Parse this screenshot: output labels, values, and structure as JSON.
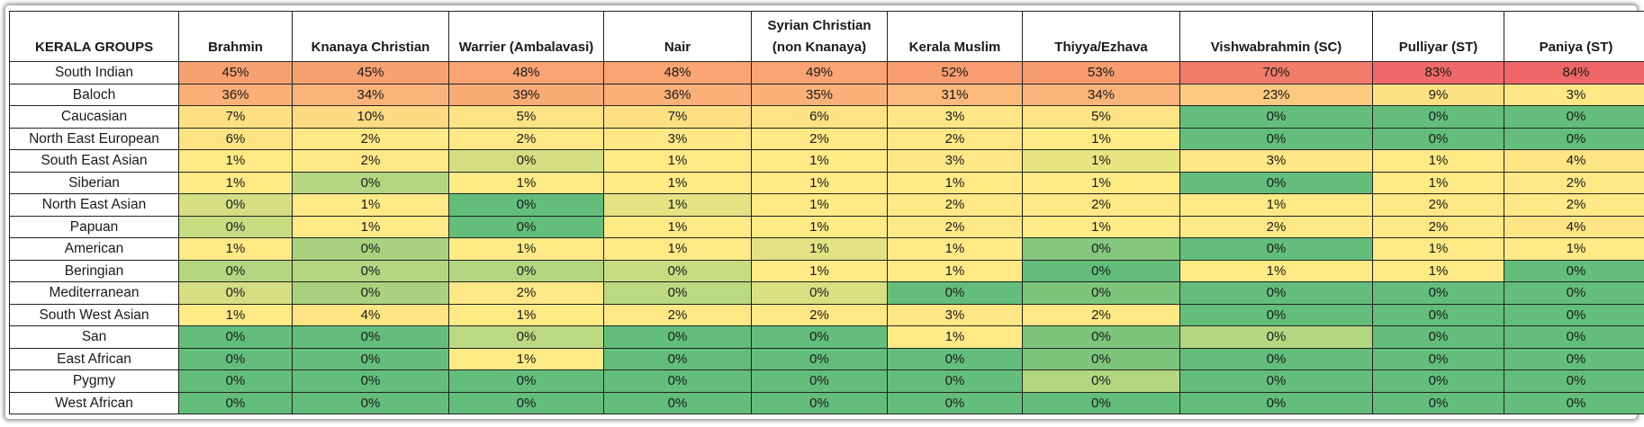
{
  "table": {
    "corner_label": "KERALA GROUPS",
    "columns": [
      "Brahmin",
      "Knanaya Christian",
      "Warrier (Ambalavasi)",
      "Nair",
      "Syrian Christian (non Knanaya)",
      "Kerala Muslim",
      "Thiyya/Ezhava",
      "Vishwabrahmin (SC)",
      "Pulliyar (ST)",
      "Paniya (ST)"
    ],
    "rows": [
      {
        "label": "South Indian",
        "cells": [
          {
            "v": "45%",
            "bg": "#F8A170"
          },
          {
            "v": "45%",
            "bg": "#F8A170"
          },
          {
            "v": "48%",
            "bg": "#F9A472"
          },
          {
            "v": "48%",
            "bg": "#F9A472"
          },
          {
            "v": "49%",
            "bg": "#F9A472"
          },
          {
            "v": "52%",
            "bg": "#F79D6F"
          },
          {
            "v": "53%",
            "bg": "#F79C6E"
          },
          {
            "v": "70%",
            "bg": "#F27C6B"
          },
          {
            "v": "83%",
            "bg": "#F0696A"
          },
          {
            "v": "84%",
            "bg": "#EF6669"
          }
        ]
      },
      {
        "label": "Baloch",
        "cells": [
          {
            "v": "36%",
            "bg": "#FAB077"
          },
          {
            "v": "34%",
            "bg": "#FAB47A"
          },
          {
            "v": "39%",
            "bg": "#F9AB74"
          },
          {
            "v": "36%",
            "bg": "#FAB077"
          },
          {
            "v": "35%",
            "bg": "#FAB279"
          },
          {
            "v": "31%",
            "bg": "#FBB97C"
          },
          {
            "v": "34%",
            "bg": "#FAB47A"
          },
          {
            "v": "23%",
            "bg": "#FCC981"
          },
          {
            "v": "9%",
            "bg": "#FEE183"
          },
          {
            "v": "3%",
            "bg": "#FFE785"
          }
        ]
      },
      {
        "label": "Caucasian",
        "cells": [
          {
            "v": "7%",
            "bg": "#FEE083"
          },
          {
            "v": "10%",
            "bg": "#FDDB82"
          },
          {
            "v": "5%",
            "bg": "#FEE384"
          },
          {
            "v": "7%",
            "bg": "#FEE083"
          },
          {
            "v": "6%",
            "bg": "#FEE284"
          },
          {
            "v": "3%",
            "bg": "#FFE785"
          },
          {
            "v": "5%",
            "bg": "#FEE384"
          },
          {
            "v": "0%",
            "bg": "#63BE7B"
          },
          {
            "v": "0%",
            "bg": "#63BE7B"
          },
          {
            "v": "0%",
            "bg": "#63BE7B"
          }
        ]
      },
      {
        "label": "North East European",
        "cells": [
          {
            "v": "6%",
            "bg": "#FEE284"
          },
          {
            "v": "2%",
            "bg": "#FFE885"
          },
          {
            "v": "2%",
            "bg": "#FFE885"
          },
          {
            "v": "3%",
            "bg": "#FFE785"
          },
          {
            "v": "2%",
            "bg": "#FFE885"
          },
          {
            "v": "2%",
            "bg": "#FFE885"
          },
          {
            "v": "1%",
            "bg": "#FFEA86"
          },
          {
            "v": "0%",
            "bg": "#63BE7B"
          },
          {
            "v": "0%",
            "bg": "#63BE7B"
          },
          {
            "v": "0%",
            "bg": "#63BE7B"
          }
        ]
      },
      {
        "label": "South East Asian",
        "cells": [
          {
            "v": "1%",
            "bg": "#FFEA86"
          },
          {
            "v": "2%",
            "bg": "#FFE885"
          },
          {
            "v": "0%",
            "bg": "#D3DF82"
          },
          {
            "v": "1%",
            "bg": "#FFEA86"
          },
          {
            "v": "1%",
            "bg": "#FFEA86"
          },
          {
            "v": "3%",
            "bg": "#FFE785"
          },
          {
            "v": "1%",
            "bg": "#E9E583"
          },
          {
            "v": "3%",
            "bg": "#FFE785"
          },
          {
            "v": "1%",
            "bg": "#FFEA86"
          },
          {
            "v": "4%",
            "bg": "#FEE584"
          }
        ]
      },
      {
        "label": "Siberian",
        "cells": [
          {
            "v": "1%",
            "bg": "#FFEA86"
          },
          {
            "v": "0%",
            "bg": "#B4D680"
          },
          {
            "v": "1%",
            "bg": "#FFEA86"
          },
          {
            "v": "1%",
            "bg": "#FFEA86"
          },
          {
            "v": "1%",
            "bg": "#FFEA86"
          },
          {
            "v": "1%",
            "bg": "#FFEA86"
          },
          {
            "v": "1%",
            "bg": "#FFEA86"
          },
          {
            "v": "0%",
            "bg": "#63BE7B"
          },
          {
            "v": "1%",
            "bg": "#FFEA86"
          },
          {
            "v": "2%",
            "bg": "#FFE885"
          }
        ]
      },
      {
        "label": "North East Asian",
        "cells": [
          {
            "v": "0%",
            "bg": "#D3DF82"
          },
          {
            "v": "1%",
            "bg": "#FFEA86"
          },
          {
            "v": "0%",
            "bg": "#63BE7B"
          },
          {
            "v": "1%",
            "bg": "#E4E383"
          },
          {
            "v": "1%",
            "bg": "#FFEA86"
          },
          {
            "v": "2%",
            "bg": "#FFE885"
          },
          {
            "v": "2%",
            "bg": "#FFE885"
          },
          {
            "v": "1%",
            "bg": "#FFEA86"
          },
          {
            "v": "2%",
            "bg": "#FFE885"
          },
          {
            "v": "2%",
            "bg": "#FFE885"
          }
        ]
      },
      {
        "label": "Papuan",
        "cells": [
          {
            "v": "0%",
            "bg": "#C7DB81"
          },
          {
            "v": "1%",
            "bg": "#FFEA86"
          },
          {
            "v": "0%",
            "bg": "#63BE7B"
          },
          {
            "v": "1%",
            "bg": "#FFEA86"
          },
          {
            "v": "1%",
            "bg": "#FFEA86"
          },
          {
            "v": "2%",
            "bg": "#FFE885"
          },
          {
            "v": "1%",
            "bg": "#FFEA86"
          },
          {
            "v": "2%",
            "bg": "#FFE885"
          },
          {
            "v": "2%",
            "bg": "#FFE885"
          },
          {
            "v": "4%",
            "bg": "#FEE584"
          }
        ]
      },
      {
        "label": "American",
        "cells": [
          {
            "v": "1%",
            "bg": "#FFEA86"
          },
          {
            "v": "0%",
            "bg": "#A9D27F"
          },
          {
            "v": "1%",
            "bg": "#FFEA86"
          },
          {
            "v": "1%",
            "bg": "#FFEA86"
          },
          {
            "v": "1%",
            "bg": "#E1E283"
          },
          {
            "v": "1%",
            "bg": "#FFEA86"
          },
          {
            "v": "0%",
            "bg": "#84C77D"
          },
          {
            "v": "0%",
            "bg": "#63BE7B"
          },
          {
            "v": "1%",
            "bg": "#FFEA86"
          },
          {
            "v": "1%",
            "bg": "#FFEA86"
          }
        ]
      },
      {
        "label": "Beringian",
        "cells": [
          {
            "v": "0%",
            "bg": "#B4D680"
          },
          {
            "v": "0%",
            "bg": "#B4D680"
          },
          {
            "v": "0%",
            "bg": "#B4D680"
          },
          {
            "v": "0%",
            "bg": "#C7DB81"
          },
          {
            "v": "1%",
            "bg": "#FFEA86"
          },
          {
            "v": "1%",
            "bg": "#FFEA86"
          },
          {
            "v": "0%",
            "bg": "#63BE7B"
          },
          {
            "v": "1%",
            "bg": "#FFEA86"
          },
          {
            "v": "1%",
            "bg": "#FFEA86"
          },
          {
            "v": "0%",
            "bg": "#63BE7B"
          }
        ]
      },
      {
        "label": "Mediterranean",
        "cells": [
          {
            "v": "0%",
            "bg": "#D3DF82"
          },
          {
            "v": "0%",
            "bg": "#A9D27F"
          },
          {
            "v": "2%",
            "bg": "#FFE885"
          },
          {
            "v": "0%",
            "bg": "#BCD881"
          },
          {
            "v": "0%",
            "bg": "#D9E082"
          },
          {
            "v": "0%",
            "bg": "#63BE7B"
          },
          {
            "v": "0%",
            "bg": "#7EC57C"
          },
          {
            "v": "0%",
            "bg": "#63BE7B"
          },
          {
            "v": "0%",
            "bg": "#63BE7B"
          },
          {
            "v": "0%",
            "bg": "#63BE7B"
          }
        ]
      },
      {
        "label": "South West Asian",
        "cells": [
          {
            "v": "1%",
            "bg": "#FFEA86"
          },
          {
            "v": "4%",
            "bg": "#FEE584"
          },
          {
            "v": "1%",
            "bg": "#FFEA86"
          },
          {
            "v": "2%",
            "bg": "#FFE885"
          },
          {
            "v": "2%",
            "bg": "#FFE885"
          },
          {
            "v": "3%",
            "bg": "#FFE785"
          },
          {
            "v": "2%",
            "bg": "#FFE885"
          },
          {
            "v": "0%",
            "bg": "#63BE7B"
          },
          {
            "v": "0%",
            "bg": "#63BE7B"
          },
          {
            "v": "0%",
            "bg": "#63BE7B"
          }
        ]
      },
      {
        "label": "San",
        "cells": [
          {
            "v": "0%",
            "bg": "#63BE7B"
          },
          {
            "v": "0%",
            "bg": "#63BE7B"
          },
          {
            "v": "0%",
            "bg": "#BCD881"
          },
          {
            "v": "0%",
            "bg": "#63BE7B"
          },
          {
            "v": "0%",
            "bg": "#63BE7B"
          },
          {
            "v": "1%",
            "bg": "#FFEA86"
          },
          {
            "v": "0%",
            "bg": "#7EC57C"
          },
          {
            "v": "0%",
            "bg": "#B4D680"
          },
          {
            "v": "0%",
            "bg": "#63BE7B"
          },
          {
            "v": "0%",
            "bg": "#63BE7B"
          }
        ]
      },
      {
        "label": "East African",
        "cells": [
          {
            "v": "0%",
            "bg": "#63BE7B"
          },
          {
            "v": "0%",
            "bg": "#63BE7B"
          },
          {
            "v": "1%",
            "bg": "#FFEA86"
          },
          {
            "v": "0%",
            "bg": "#63BE7B"
          },
          {
            "v": "0%",
            "bg": "#63BE7B"
          },
          {
            "v": "0%",
            "bg": "#63BE7B"
          },
          {
            "v": "0%",
            "bg": "#7EC57C"
          },
          {
            "v": "0%",
            "bg": "#63BE7B"
          },
          {
            "v": "0%",
            "bg": "#63BE7B"
          },
          {
            "v": "0%",
            "bg": "#63BE7B"
          }
        ]
      },
      {
        "label": "Pygmy",
        "cells": [
          {
            "v": "0%",
            "bg": "#63BE7B"
          },
          {
            "v": "0%",
            "bg": "#63BE7B"
          },
          {
            "v": "0%",
            "bg": "#63BE7B"
          },
          {
            "v": "0%",
            "bg": "#63BE7B"
          },
          {
            "v": "0%",
            "bg": "#63BE7B"
          },
          {
            "v": "0%",
            "bg": "#63BE7B"
          },
          {
            "v": "0%",
            "bg": "#B4D680"
          },
          {
            "v": "0%",
            "bg": "#63BE7B"
          },
          {
            "v": "0%",
            "bg": "#63BE7B"
          },
          {
            "v": "0%",
            "bg": "#63BE7B"
          }
        ]
      },
      {
        "label": "West African",
        "cells": [
          {
            "v": "0%",
            "bg": "#63BE7B"
          },
          {
            "v": "0%",
            "bg": "#63BE7B"
          },
          {
            "v": "0%",
            "bg": "#63BE7B"
          },
          {
            "v": "0%",
            "bg": "#63BE7B"
          },
          {
            "v": "0%",
            "bg": "#63BE7B"
          },
          {
            "v": "0%",
            "bg": "#63BE7B"
          },
          {
            "v": "0%",
            "bg": "#63BE7B"
          },
          {
            "v": "0%",
            "bg": "#63BE7B"
          },
          {
            "v": "0%",
            "bg": "#63BE7B"
          },
          {
            "v": "0%",
            "bg": "#63BE7B"
          }
        ]
      }
    ]
  }
}
